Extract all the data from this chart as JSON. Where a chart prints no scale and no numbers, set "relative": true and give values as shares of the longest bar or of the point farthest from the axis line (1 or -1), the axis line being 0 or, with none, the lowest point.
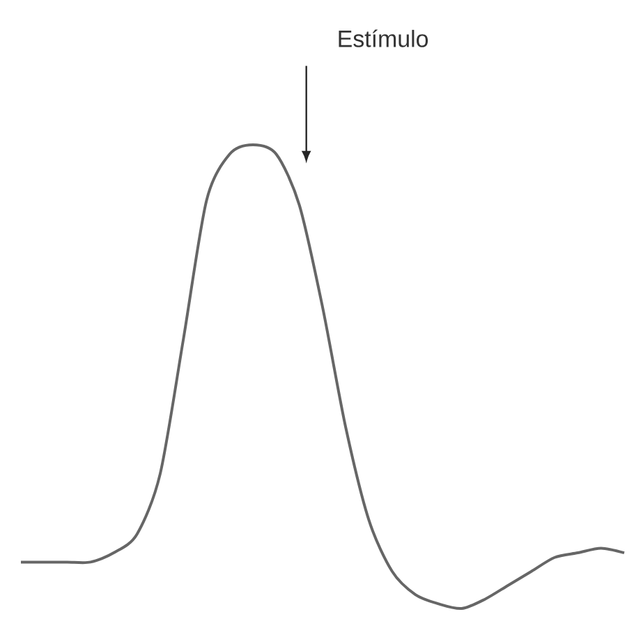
{
  "chart_data": {
    "type": "line",
    "relative": true,
    "categories": [
      null,
      null,
      null,
      null,
      null,
      null,
      null,
      null,
      null,
      null,
      null,
      null,
      null,
      null,
      null,
      null,
      null,
      null,
      null,
      null,
      null,
      null,
      null,
      null,
      null,
      null,
      null
    ],
    "series": [
      {
        "color": "#666666",
        "values": [
          0.1,
          0.1,
          0.1,
          0.1,
          0.12,
          0.16,
          0.29,
          0.58,
          0.88,
          0.98,
          1.0,
          0.98,
          0.87,
          0.65,
          0.39,
          0.19,
          0.08,
          0.03,
          0.01,
          0.0,
          0.02,
          0.05,
          0.08,
          0.11,
          0.12,
          0.13,
          0.12
        ]
      }
    ],
    "annotations": [
      "Estímulo"
    ]
  }
}
